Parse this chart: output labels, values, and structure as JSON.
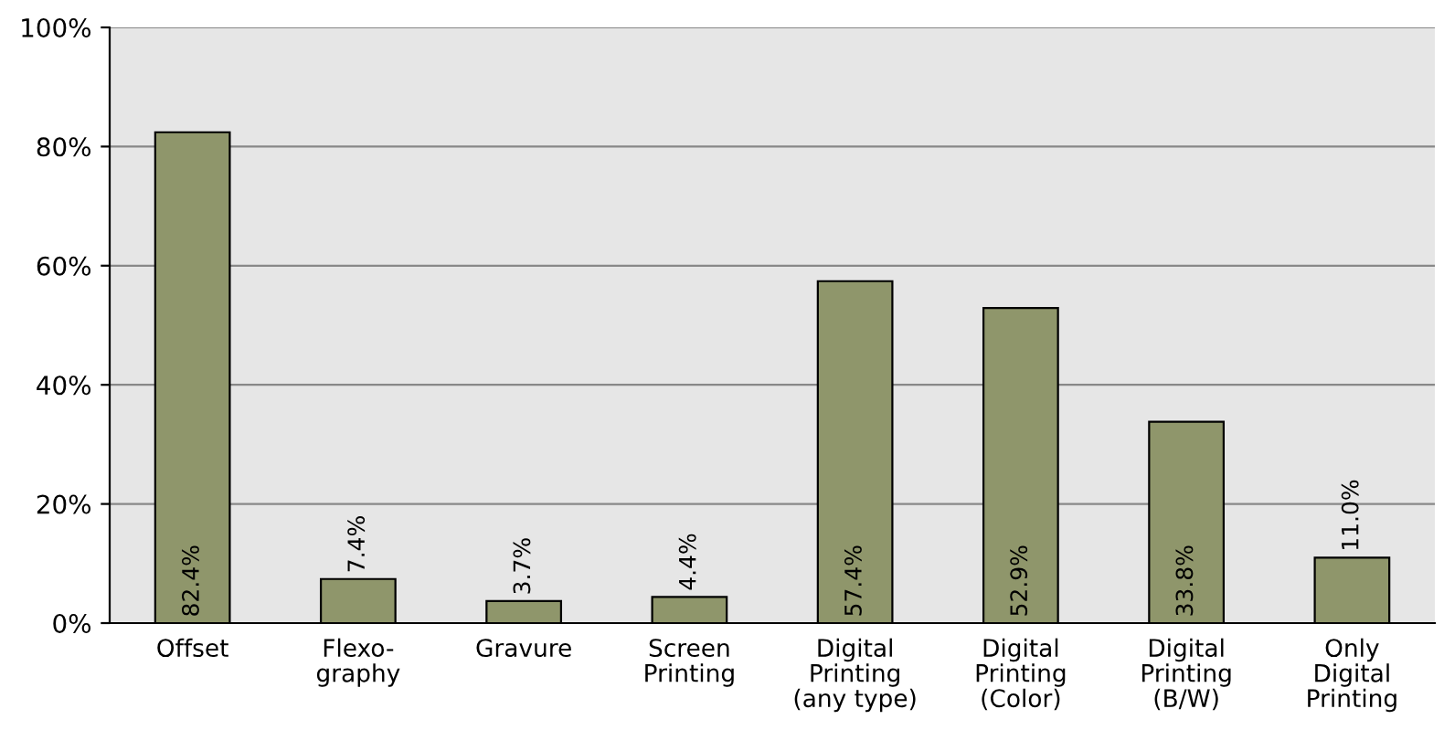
{
  "chart_data": {
    "type": "bar",
    "categories": [
      "Offset",
      "Flexo-\ngraphy",
      "Gravure",
      "Screen\nPrinting",
      "Digital\nPrinting\n(any type)",
      "Digital\nPrinting\n(Color)",
      "Digital\nPrinting\n(B/W)",
      "Only\nDigital\nPrinting"
    ],
    "values": [
      82.4,
      7.4,
      3.7,
      4.4,
      57.4,
      52.9,
      33.8,
      11.0
    ],
    "value_labels": [
      "82.4%",
      "7.4%",
      "3.7%",
      "4.4%",
      "57.4%",
      "52.9%",
      "33.8%",
      "11.0%"
    ],
    "color": "#8f966b",
    "ylim": [
      0,
      100
    ],
    "yticks": [
      {
        "value": 0,
        "label": "0%"
      },
      {
        "value": 20,
        "label": "20%"
      },
      {
        "value": 40,
        "label": "40%"
      },
      {
        "value": 60,
        "label": "60%"
      },
      {
        "value": 80,
        "label": "80%"
      },
      {
        "value": 100,
        "label": "100%"
      }
    ],
    "grid": "y",
    "legend": false
  }
}
